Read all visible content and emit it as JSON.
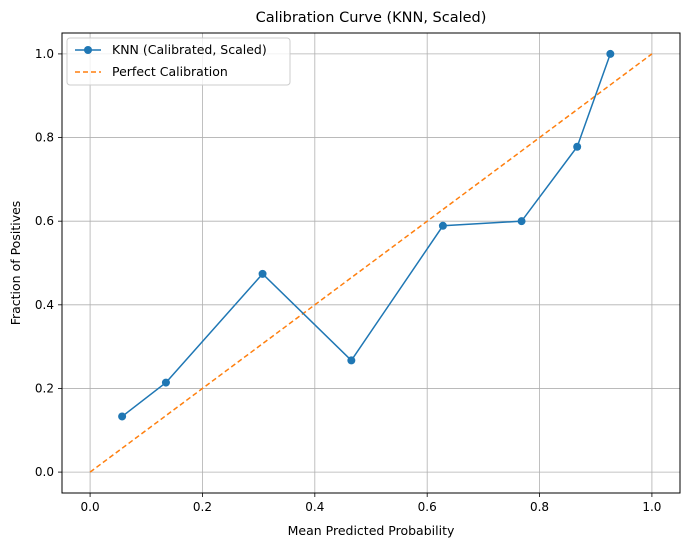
{
  "chart_data": {
    "type": "line",
    "title": "Calibration Curve (KNN, Scaled)",
    "xlabel": "Mean Predicted Probability",
    "ylabel": "Fraction of Positives",
    "xlim": [
      -0.05,
      1.05
    ],
    "ylim": [
      -0.05,
      1.05
    ],
    "x_ticks": [
      0.0,
      0.2,
      0.4,
      0.6,
      0.8,
      1.0
    ],
    "x_tick_labels": [
      "0.0",
      "0.2",
      "0.4",
      "0.6",
      "0.8",
      "1.0"
    ],
    "y_ticks": [
      0.0,
      0.2,
      0.4,
      0.6,
      0.8,
      1.0
    ],
    "y_tick_labels": [
      "0.0",
      "0.2",
      "0.4",
      "0.6",
      "0.8",
      "1.0"
    ],
    "grid": true,
    "legend_position": "top-left",
    "series": [
      {
        "name": "KNN (Calibrated, Scaled)",
        "style": "solid-marker",
        "color": "#1f77b4",
        "x": [
          0.057,
          0.135,
          0.307,
          0.465,
          0.628,
          0.768,
          0.867,
          0.926
        ],
        "y": [
          0.133,
          0.214,
          0.474,
          0.267,
          0.589,
          0.6,
          0.778,
          1.0
        ]
      },
      {
        "name": "Perfect Calibration",
        "style": "dashed",
        "color": "#ff7f0e",
        "x": [
          0.0,
          1.0
        ],
        "y": [
          0.0,
          1.0
        ]
      }
    ]
  }
}
